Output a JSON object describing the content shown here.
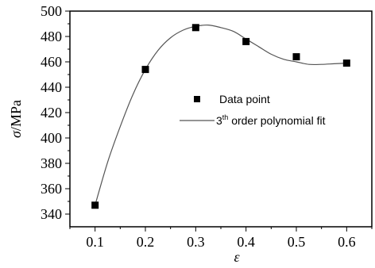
{
  "chart_data": {
    "type": "scatter",
    "title": "",
    "xlabel": "ε",
    "ylabel_symbol": "σ",
    "ylabel_unit": "/MPa",
    "xlim": [
      0.05,
      0.65
    ],
    "ylim": [
      330,
      500
    ],
    "xticks": [
      0.1,
      0.2,
      0.3,
      0.4,
      0.5,
      0.6
    ],
    "xtick_labels": [
      "0.1",
      "0.2",
      "0.3",
      "0.4",
      "0.5",
      "0.6"
    ],
    "yticks": [
      340,
      360,
      380,
      400,
      420,
      440,
      460,
      480,
      500
    ],
    "ytick_labels": [
      "340",
      "360",
      "380",
      "400",
      "420",
      "440",
      "460",
      "480",
      "500"
    ],
    "grid": false,
    "legend_position": "center-right",
    "legend": {
      "data_point_label": "Data point",
      "fit_label_prefix": "3",
      "fit_label_superscript": "th",
      "fit_label_suffix": " order polynomial fit"
    },
    "series": [
      {
        "name": "Data point",
        "kind": "points",
        "color": "#000000",
        "x": [
          0.1,
          0.2,
          0.3,
          0.4,
          0.5,
          0.6
        ],
        "y": [
          347,
          454,
          487,
          476,
          464,
          459
        ]
      },
      {
        "name": "3th order polynomial fit",
        "kind": "curve",
        "color": "#555555",
        "x": [
          0.1,
          0.125,
          0.15,
          0.175,
          0.2,
          0.225,
          0.25,
          0.275,
          0.3,
          0.325,
          0.35,
          0.375,
          0.4,
          0.425,
          0.45,
          0.475,
          0.5,
          0.525,
          0.55,
          0.575,
          0.6
        ],
        "y": [
          347,
          381,
          409,
          434,
          454,
          469,
          479,
          485,
          488,
          489,
          487,
          484,
          478,
          472,
          466,
          462,
          460,
          458,
          458,
          458.5,
          459
        ]
      }
    ]
  }
}
